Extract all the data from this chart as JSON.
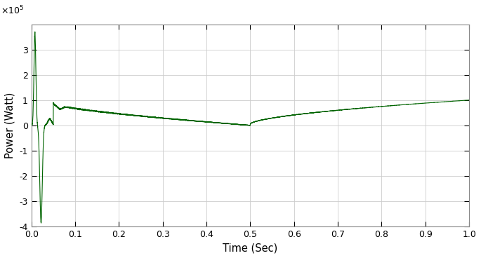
{
  "title": "",
  "xlabel": "Time (Sec)",
  "ylabel": "Power (Watt)",
  "xlim": [
    0,
    1.0
  ],
  "ylim": [
    -400000.0,
    400000.0
  ],
  "yticks": [
    -400000.0,
    -300000.0,
    -200000.0,
    -100000.0,
    0,
    100000.0,
    200000.0,
    300000.0
  ],
  "xticks": [
    0,
    0.1,
    0.2,
    0.3,
    0.4,
    0.5,
    0.6,
    0.7,
    0.8,
    0.9,
    1.0
  ],
  "line_color": "#006400",
  "background_color": "#ffffff",
  "grid_color": "#cccccc"
}
